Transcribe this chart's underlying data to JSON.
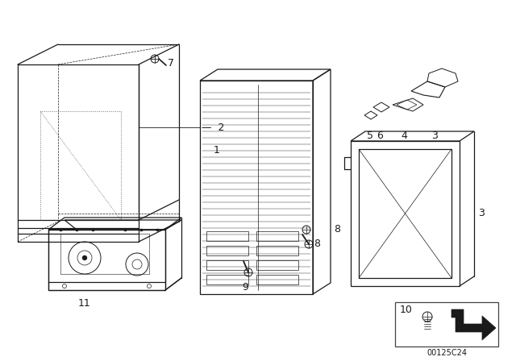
{
  "bg_color": "#ffffff",
  "border_color": "#cccccc",
  "line_color": "#1a1a1a",
  "label_color": "#111111",
  "catalog_num": "00125C24",
  "lw": 0.9
}
